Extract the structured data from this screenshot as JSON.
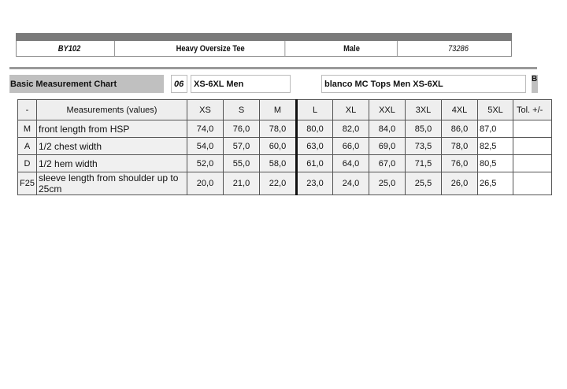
{
  "product": {
    "code": "BY102",
    "name": "Heavy Oversize Tee",
    "gender": "Male",
    "number": "73286"
  },
  "chart_label": "Basic Measurement Chart",
  "size_code": "06",
  "size_range": "XS-6XL Men",
  "template": "blanco MC Tops Men XS-6XL",
  "edge_label": "B",
  "table": {
    "headers": [
      "-",
      "Measurements (values)",
      "XS",
      "S",
      "M",
      "L",
      "XL",
      "XXL",
      "3XL",
      "4XL",
      "5XL",
      "Tol. +/-"
    ],
    "rows": [
      {
        "code": "M",
        "name": "front length from HSP",
        "values": [
          "74,0",
          "76,0",
          "78,0",
          "80,0",
          "82,0",
          "84,0",
          "85,0",
          "86,0",
          "87,0",
          ""
        ]
      },
      {
        "code": "A",
        "name": "1/2 chest width",
        "values": [
          "54,0",
          "57,0",
          "60,0",
          "63,0",
          "66,0",
          "69,0",
          "73,5",
          "78,0",
          "82,5",
          ""
        ]
      },
      {
        "code": "D",
        "name": "1/2 hem width",
        "values": [
          "52,0",
          "55,0",
          "58,0",
          "61,0",
          "64,0",
          "67,0",
          "71,5",
          "76,0",
          "80,5",
          ""
        ]
      },
      {
        "code": "F25",
        "name": "sleeve length from shoulder up to 25cm",
        "values": [
          "20,0",
          "21,0",
          "22,0",
          "23,0",
          "24,0",
          "25,0",
          "25,5",
          "26,0",
          "26,5",
          ""
        ]
      }
    ]
  }
}
